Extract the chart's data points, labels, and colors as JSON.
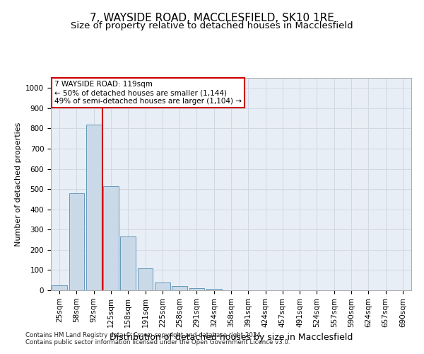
{
  "title": "7, WAYSIDE ROAD, MACCLESFIELD, SK10 1RE",
  "subtitle": "Size of property relative to detached houses in Macclesfield",
  "xlabel": "Distribution of detached houses by size in Macclesfield",
  "ylabel": "Number of detached properties",
  "footnote1": "Contains HM Land Registry data © Crown copyright and database right 2024.",
  "footnote2": "Contains public sector information licensed under the Open Government Licence v3.0.",
  "bar_labels": [
    "25sqm",
    "58sqm",
    "92sqm",
    "125sqm",
    "158sqm",
    "191sqm",
    "225sqm",
    "258sqm",
    "291sqm",
    "324sqm",
    "358sqm",
    "391sqm",
    "424sqm",
    "457sqm",
    "491sqm",
    "524sqm",
    "557sqm",
    "590sqm",
    "624sqm",
    "657sqm",
    "690sqm"
  ],
  "bar_values": [
    25,
    480,
    820,
    515,
    265,
    110,
    38,
    20,
    12,
    8,
    0,
    0,
    0,
    0,
    0,
    0,
    0,
    0,
    0,
    0,
    0
  ],
  "bar_color": "#c9d9e8",
  "bar_edge_color": "#6699bb",
  "highlight_bar_index": 2,
  "highlight_line_color": "#cc0000",
  "annotation_line1": "7 WAYSIDE ROAD: 119sqm",
  "annotation_line2": "← 50% of detached houses are smaller (1,144)",
  "annotation_line3": "49% of semi-detached houses are larger (1,104) →",
  "annotation_box_color": "#ffffff",
  "annotation_box_edge": "#cc0000",
  "ylim": [
    0,
    1050
  ],
  "yticks": [
    0,
    100,
    200,
    300,
    400,
    500,
    600,
    700,
    800,
    900,
    1000
  ],
  "grid_color": "#d0d8e4",
  "bg_color": "#e8eef5",
  "title_fontsize": 11,
  "subtitle_fontsize": 9.5,
  "xlabel_fontsize": 9,
  "ylabel_fontsize": 8,
  "tick_fontsize": 7.5,
  "annotation_fontsize": 7.5
}
